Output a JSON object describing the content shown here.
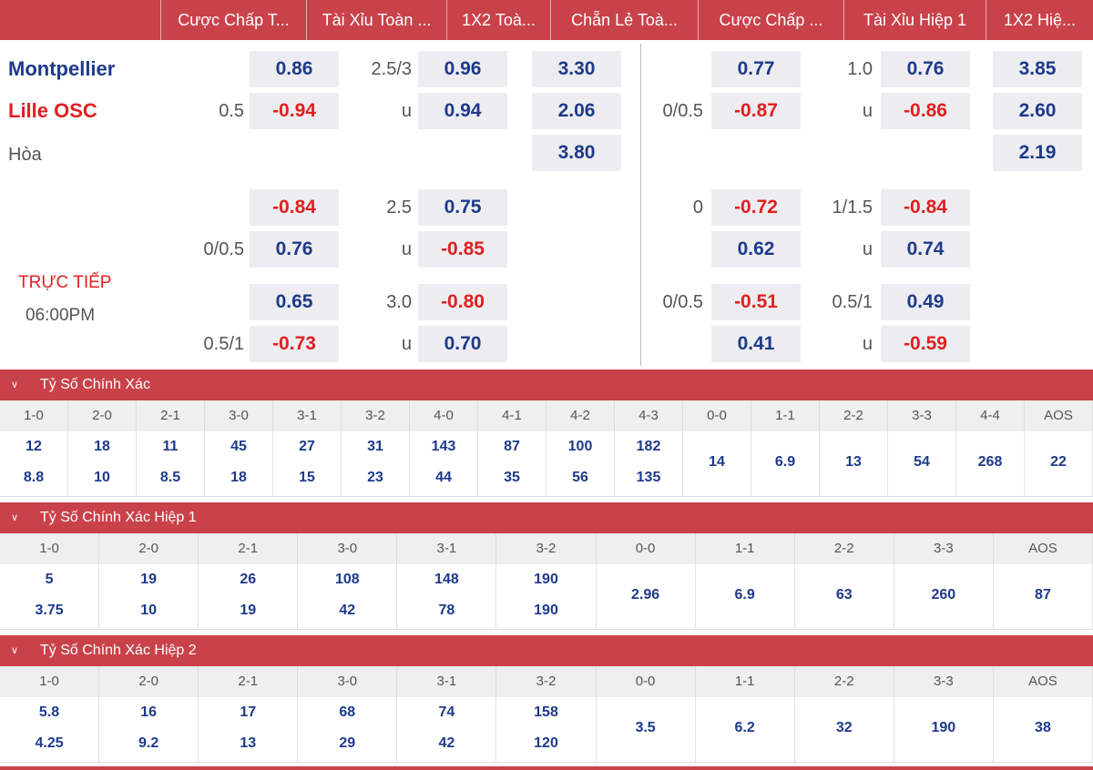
{
  "colors": {
    "accent": "#c9424a",
    "positive": "#1e3a8a",
    "negative": "#e0201f"
  },
  "tabs": [
    "Cược Chấp T...",
    "Tài Xỉu Toàn ...",
    "1X2 Toà...",
    "Chẵn Lẻ Toà...",
    "Cược Chấp ...",
    "Tài Xỉu Hiệp 1",
    "1X2 Hiệ..."
  ],
  "match": {
    "home": "Montpellier",
    "away": "Lille OSC",
    "draw": "Hòa",
    "status": "TRỰC TIẾP",
    "time": "06:00PM"
  },
  "odds": {
    "ft_hcap": [
      {
        "line": "0.5",
        "home": "0.86",
        "away": "-0.94"
      },
      {
        "line": "0/0.5",
        "home": "-0.84",
        "away": "0.76"
      },
      {
        "line": "0.5/1",
        "home": "0.65",
        "away": "-0.73"
      }
    ],
    "ft_ou": [
      {
        "line": "2.5/3",
        "u": "u",
        "over": "0.96",
        "under": "0.94"
      },
      {
        "line": "2.5",
        "u": "u",
        "over": "0.75",
        "under": "-0.85"
      },
      {
        "line": "3.0",
        "u": "u",
        "over": "-0.80",
        "under": "0.70"
      }
    ],
    "ft_1x2": [
      "3.30",
      "2.06",
      "3.80"
    ],
    "h1_hcap": [
      {
        "line": "0/0.5",
        "home": "0.77",
        "away": "-0.87"
      },
      {
        "line": "0",
        "home": "-0.72",
        "away": "0.62"
      },
      {
        "line": "0/0.5",
        "home": "-0.51",
        "away": "0.41"
      }
    ],
    "h1_ou": [
      {
        "line": "1.0",
        "u": "u",
        "over": "0.76",
        "under": "-0.86"
      },
      {
        "line": "1/1.5",
        "u": "u",
        "over": "-0.84",
        "under": "0.74"
      },
      {
        "line": "0.5/1",
        "u": "u",
        "over": "0.49",
        "under": "-0.59"
      }
    ],
    "h1_1x2": [
      "3.85",
      "2.60",
      "2.19"
    ]
  },
  "sections": [
    {
      "title": "Tỷ Số Chính Xác",
      "cols": [
        {
          "h": "1-0",
          "a": "12",
          "b": "8.8"
        },
        {
          "h": "2-0",
          "a": "18",
          "b": "10"
        },
        {
          "h": "2-1",
          "a": "11",
          "b": "8.5"
        },
        {
          "h": "3-0",
          "a": "45",
          "b": "18"
        },
        {
          "h": "3-1",
          "a": "27",
          "b": "15"
        },
        {
          "h": "3-2",
          "a": "31",
          "b": "23"
        },
        {
          "h": "4-0",
          "a": "143",
          "b": "44"
        },
        {
          "h": "4-1",
          "a": "87",
          "b": "35"
        },
        {
          "h": "4-2",
          "a": "100",
          "b": "56"
        },
        {
          "h": "4-3",
          "a": "182",
          "b": "135"
        },
        {
          "h": "0-0",
          "s": "14"
        },
        {
          "h": "1-1",
          "s": "6.9"
        },
        {
          "h": "2-2",
          "s": "13"
        },
        {
          "h": "3-3",
          "s": "54"
        },
        {
          "h": "4-4",
          "s": "268"
        },
        {
          "h": "AOS",
          "s": "22"
        }
      ]
    },
    {
      "title": "Tỷ Số Chính Xác Hiệp 1",
      "cols": [
        {
          "h": "1-0",
          "a": "5",
          "b": "3.75"
        },
        {
          "h": "2-0",
          "a": "19",
          "b": "10"
        },
        {
          "h": "2-1",
          "a": "26",
          "b": "19"
        },
        {
          "h": "3-0",
          "a": "108",
          "b": "42"
        },
        {
          "h": "3-1",
          "a": "148",
          "b": "78"
        },
        {
          "h": "3-2",
          "a": "190",
          "b": "190"
        },
        {
          "h": "0-0",
          "s": "2.96"
        },
        {
          "h": "1-1",
          "s": "6.9"
        },
        {
          "h": "2-2",
          "s": "63"
        },
        {
          "h": "3-3",
          "s": "260"
        },
        {
          "h": "AOS",
          "s": "87"
        }
      ]
    },
    {
      "title": "Tỷ Số Chính Xác Hiệp 2",
      "cols": [
        {
          "h": "1-0",
          "a": "5.8",
          "b": "4.25"
        },
        {
          "h": "2-0",
          "a": "16",
          "b": "9.2"
        },
        {
          "h": "2-1",
          "a": "17",
          "b": "13"
        },
        {
          "h": "3-0",
          "a": "68",
          "b": "29"
        },
        {
          "h": "3-1",
          "a": "74",
          "b": "42"
        },
        {
          "h": "3-2",
          "a": "158",
          "b": "120"
        },
        {
          "h": "0-0",
          "s": "3.5"
        },
        {
          "h": "1-1",
          "s": "6.2"
        },
        {
          "h": "2-2",
          "s": "32"
        },
        {
          "h": "3-3",
          "s": "190"
        },
        {
          "h": "AOS",
          "s": "38"
        }
      ]
    }
  ]
}
